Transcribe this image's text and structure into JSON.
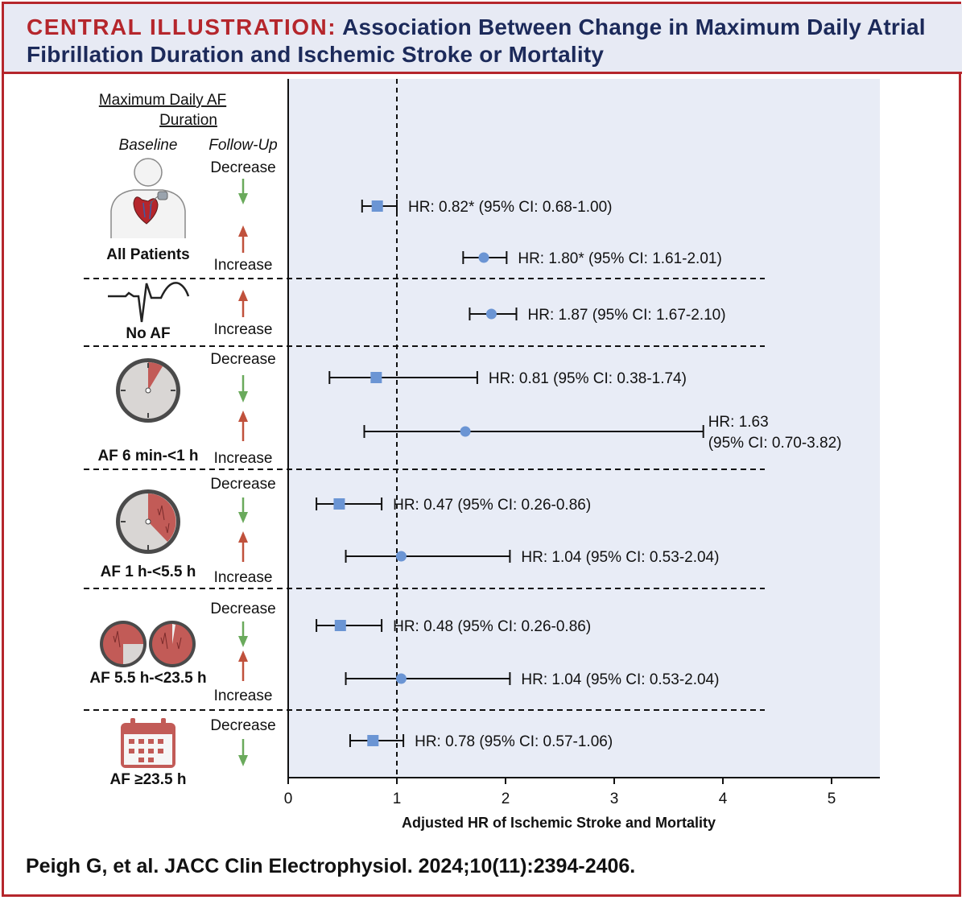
{
  "header": {
    "lead": "CENTRAL ILLUSTRATION:",
    "title": "Association Between Change in Maximum Daily Atrial Fibrillation Duration and Ischemic Stroke or Mortality"
  },
  "left_panel": {
    "heading_line1": "Maximum Daily AF",
    "heading_line2": "Duration",
    "baseline_label": "Baseline",
    "followup_label": "Follow-Up"
  },
  "labels": {
    "decrease": "Decrease",
    "increase": "Increase"
  },
  "groups": [
    {
      "label": "All Patients",
      "icon": "patient-heart-icon"
    },
    {
      "label": "No AF",
      "icon": "ecg-trace-icon"
    },
    {
      "label": "AF 6 min-<1 h",
      "icon": "clock-small-fraction-icon"
    },
    {
      "label": "AF 1 h-<5.5 h",
      "icon": "clock-quarter-fraction-icon"
    },
    {
      "label": "AF 5.5 h-<23.5 h",
      "icon": "two-clocks-icon"
    },
    {
      "label": "AF ≥23.5 h",
      "icon": "calendar-icon"
    }
  ],
  "colors": {
    "decrease_arrow": "#6aaa5c",
    "increase_arrow": "#c0513c",
    "marker": "#6b95d4",
    "plot_bg": "#e8ecf6",
    "frame": "#b5262c",
    "title_text": "#1c2a5a"
  },
  "chart_data": {
    "type": "forest",
    "xlabel": "Adjusted HR of Ischemic Stroke and Mortality",
    "xlim": [
      0,
      5.45
    ],
    "xticks": [
      0,
      1,
      2,
      3,
      4,
      5
    ],
    "reference_line": 1,
    "rows": [
      {
        "group": "All Patients",
        "direction": "Decrease",
        "marker": "square",
        "hr": 0.82,
        "ci": [
          0.68,
          1.0
        ],
        "label": "HR: 0.82* (95% CI: 0.68-1.00)"
      },
      {
        "group": "All Patients",
        "direction": "Increase",
        "marker": "circle",
        "hr": 1.8,
        "ci": [
          1.61,
          2.01
        ],
        "label": "HR: 1.80* (95% CI: 1.61-2.01)"
      },
      {
        "group": "No AF",
        "direction": "Increase",
        "marker": "circle",
        "hr": 1.87,
        "ci": [
          1.67,
          2.1
        ],
        "label": "HR: 1.87 (95% CI: 1.67-2.10)"
      },
      {
        "group": "AF 6 min-<1 h",
        "direction": "Decrease",
        "marker": "square",
        "hr": 0.81,
        "ci": [
          0.38,
          1.74
        ],
        "label": "HR: 0.81 (95% CI: 0.38-1.74)"
      },
      {
        "group": "AF 6 min-<1 h",
        "direction": "Increase",
        "marker": "circle",
        "hr": 1.63,
        "ci": [
          0.7,
          3.82
        ],
        "label": "HR: 1.63",
        "label_line2": "(95% CI: 0.70-3.82)"
      },
      {
        "group": "AF 1 h-<5.5 h",
        "direction": "Decrease",
        "marker": "square",
        "hr": 0.47,
        "ci": [
          0.26,
          0.86
        ],
        "label": "HR: 0.47 (95% CI: 0.26-0.86)"
      },
      {
        "group": "AF 1 h-<5.5 h",
        "direction": "Increase",
        "marker": "circle",
        "hr": 1.04,
        "ci": [
          0.53,
          2.04
        ],
        "label": "HR: 1.04 (95% CI: 0.53-2.04)"
      },
      {
        "group": "AF 5.5 h-<23.5 h",
        "direction": "Decrease",
        "marker": "square",
        "hr": 0.48,
        "ci": [
          0.26,
          0.86
        ],
        "label": "HR: 0.48 (95% CI: 0.26-0.86)"
      },
      {
        "group": "AF 5.5 h-<23.5 h",
        "direction": "Increase",
        "marker": "circle",
        "hr": 1.04,
        "ci": [
          0.53,
          2.04
        ],
        "label": "HR: 1.04 (95% CI: 0.53-2.04)"
      },
      {
        "group": "AF ≥23.5 h",
        "direction": "Decrease",
        "marker": "square",
        "hr": 0.78,
        "ci": [
          0.57,
          1.06
        ],
        "label": "HR: 0.78 (95% CI: 0.57-1.06)"
      }
    ]
  },
  "citation": "Peigh G, et al. JACC Clin Electrophysiol. 2024;10(11):2394-2406."
}
